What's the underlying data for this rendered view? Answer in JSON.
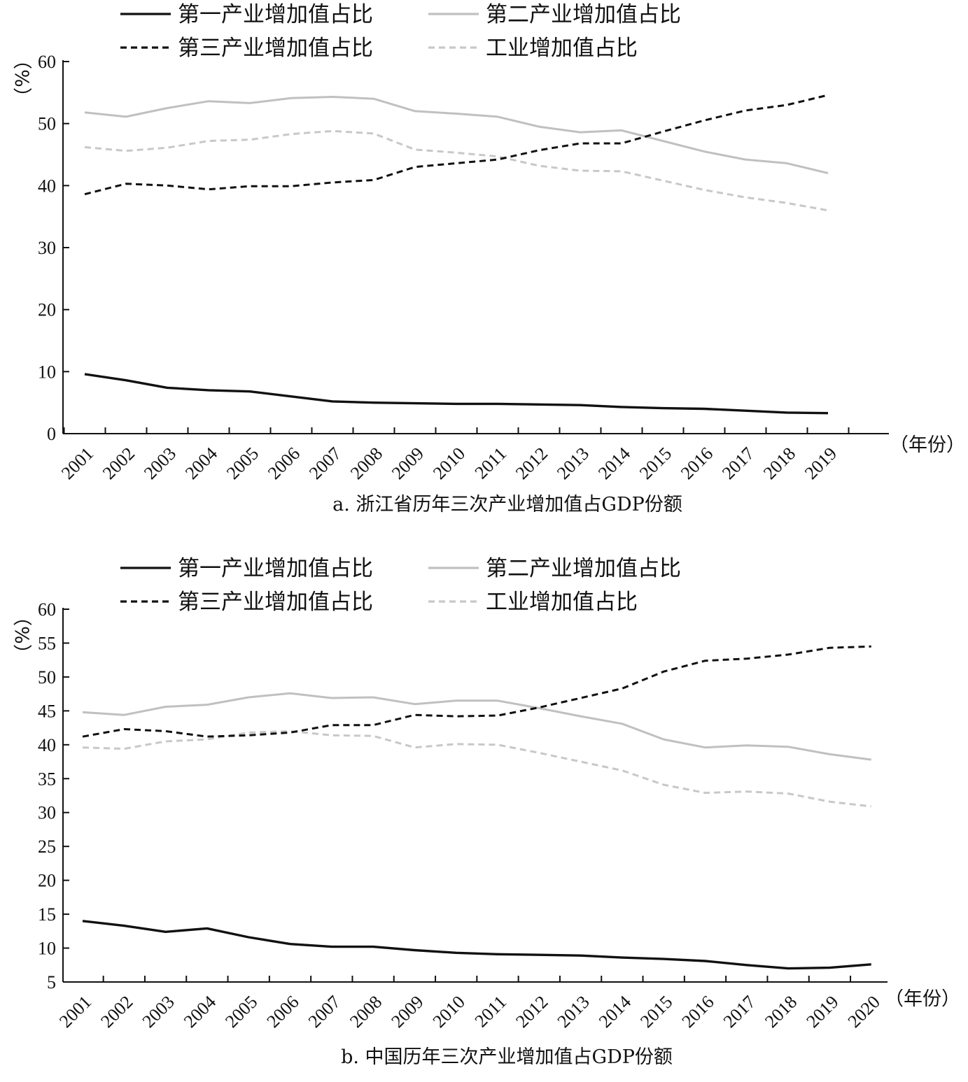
{
  "charts": [
    {
      "caption": "a. 浙江省历年三次产业增加值占GDP份额",
      "y_unit": "（%）",
      "x_unit": "（年份）"
    },
    {
      "caption": "b. 中国历年三次产业增加值占GDP份额",
      "y_unit": "（%）",
      "x_unit": "（年份）"
    }
  ],
  "chart_data": [
    {
      "type": "line",
      "title": "a. 浙江省历年三次产业增加值占GDP份额",
      "xlabel": "（年份）",
      "ylabel": "（%）",
      "ylim": [
        0,
        60
      ],
      "yticks": [
        0,
        10,
        20,
        30,
        40,
        50,
        60
      ],
      "x": [
        "2001",
        "2002",
        "2003",
        "2004",
        "2005",
        "2006",
        "2007",
        "2008",
        "2009",
        "2010",
        "2011",
        "2012",
        "2013",
        "2014",
        "2015",
        "2016",
        "2017",
        "2018",
        "2019"
      ],
      "legend_position": "top",
      "grid": false,
      "series": [
        {
          "name": "第一产业增加值占比",
          "color": "#111111",
          "style": "solid",
          "values": [
            9.6,
            8.6,
            7.4,
            7.0,
            6.8,
            6.0,
            5.2,
            5.0,
            4.9,
            4.8,
            4.8,
            4.7,
            4.6,
            4.3,
            4.1,
            4.0,
            3.7,
            3.4,
            3.3
          ]
        },
        {
          "name": "第二产业增加值占比",
          "color": "#c0c0c0",
          "style": "solid",
          "values": [
            51.8,
            51.1,
            52.5,
            53.6,
            53.3,
            54.1,
            54.3,
            54.0,
            52.0,
            51.6,
            51.1,
            49.5,
            48.6,
            48.9,
            47.2,
            45.5,
            44.2,
            43.6,
            42.0
          ]
        },
        {
          "name": "第三产业增加值占比",
          "color": "#111111",
          "style": "dashed",
          "values": [
            38.6,
            40.3,
            40.0,
            39.4,
            39.9,
            39.9,
            40.5,
            40.9,
            43.0,
            43.6,
            44.2,
            45.7,
            46.8,
            46.8,
            48.7,
            50.5,
            52.1,
            53.0,
            54.6
          ]
        },
        {
          "name": "工业增加值占比",
          "color": "#c8c8c8",
          "style": "dashed",
          "values": [
            46.2,
            45.6,
            46.1,
            47.2,
            47.4,
            48.3,
            48.8,
            48.4,
            45.8,
            45.3,
            44.7,
            43.2,
            42.4,
            42.3,
            40.8,
            39.3,
            38.1,
            37.2,
            36.0
          ]
        }
      ]
    },
    {
      "type": "line",
      "title": "b. 中国历年三次产业增加值占GDP份额",
      "xlabel": "（年份）",
      "ylabel": "（%）",
      "ylim": [
        5,
        60
      ],
      "yticks": [
        5,
        10,
        15,
        20,
        25,
        30,
        35,
        40,
        45,
        50,
        55,
        60
      ],
      "x": [
        "2001",
        "2002",
        "2003",
        "2004",
        "2005",
        "2006",
        "2007",
        "2008",
        "2009",
        "2010",
        "2011",
        "2012",
        "2013",
        "2014",
        "2015",
        "2016",
        "2017",
        "2018",
        "2019",
        "2020"
      ],
      "legend_position": "top",
      "grid": false,
      "series": [
        {
          "name": "第一产业增加值占比",
          "color": "#111111",
          "style": "solid",
          "values": [
            14.0,
            13.3,
            12.4,
            12.9,
            11.6,
            10.6,
            10.2,
            10.2,
            9.7,
            9.3,
            9.1,
            9.0,
            8.9,
            8.6,
            8.4,
            8.1,
            7.5,
            7.0,
            7.1,
            7.6
          ]
        },
        {
          "name": "第二产业增加值占比",
          "color": "#c0c0c0",
          "style": "solid",
          "values": [
            44.8,
            44.4,
            45.6,
            45.9,
            47.0,
            47.6,
            46.9,
            47.0,
            46.0,
            46.5,
            46.5,
            45.4,
            44.2,
            43.1,
            40.8,
            39.6,
            39.9,
            39.7,
            38.6,
            37.8
          ]
        },
        {
          "name": "第三产业增加值占比",
          "color": "#111111",
          "style": "dashed",
          "values": [
            41.2,
            42.3,
            42.0,
            41.2,
            41.4,
            41.8,
            42.9,
            42.9,
            44.4,
            44.2,
            44.3,
            45.5,
            46.9,
            48.3,
            50.8,
            52.4,
            52.7,
            53.3,
            54.3,
            54.5
          ]
        },
        {
          "name": "工业增加值占比",
          "color": "#c8c8c8",
          "style": "dashed",
          "values": [
            39.6,
            39.4,
            40.5,
            40.8,
            41.8,
            42.0,
            41.4,
            41.3,
            39.6,
            40.1,
            40.0,
            38.8,
            37.5,
            36.2,
            34.1,
            32.9,
            33.1,
            32.8,
            31.6,
            30.9
          ]
        }
      ]
    }
  ]
}
